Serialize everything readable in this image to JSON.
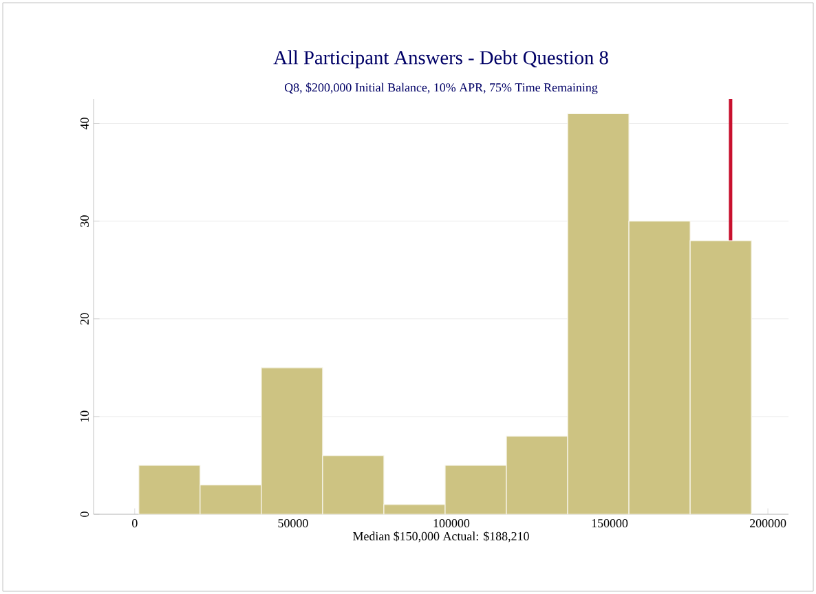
{
  "chart_data": {
    "type": "histogram",
    "title": "All Participant Answers - Debt Question 8",
    "subtitle": "Q8, $200,000 Initial Balance, 10% APR, 75% Time Remaining",
    "xlabel": "Median $150,000  Actual: $188,210",
    "bins": [
      1300,
      20650,
      40000,
      59350,
      78700,
      98050,
      117400,
      136750,
      156100,
      175450,
      194800
    ],
    "values": [
      5,
      3,
      15,
      6,
      1,
      5,
      8,
      41,
      30,
      28
    ],
    "color": "#cdc382",
    "xlim": [
      -13000,
      206500
    ],
    "ylim": [
      0,
      42.5
    ],
    "xticks": [
      0,
      50000,
      100000,
      150000,
      200000
    ],
    "yticks": [
      0,
      10,
      20,
      30,
      40
    ],
    "grid": "y",
    "ref_lines": [
      {
        "axis": "x",
        "value": 188210,
        "color": "#c8102e"
      }
    ]
  }
}
